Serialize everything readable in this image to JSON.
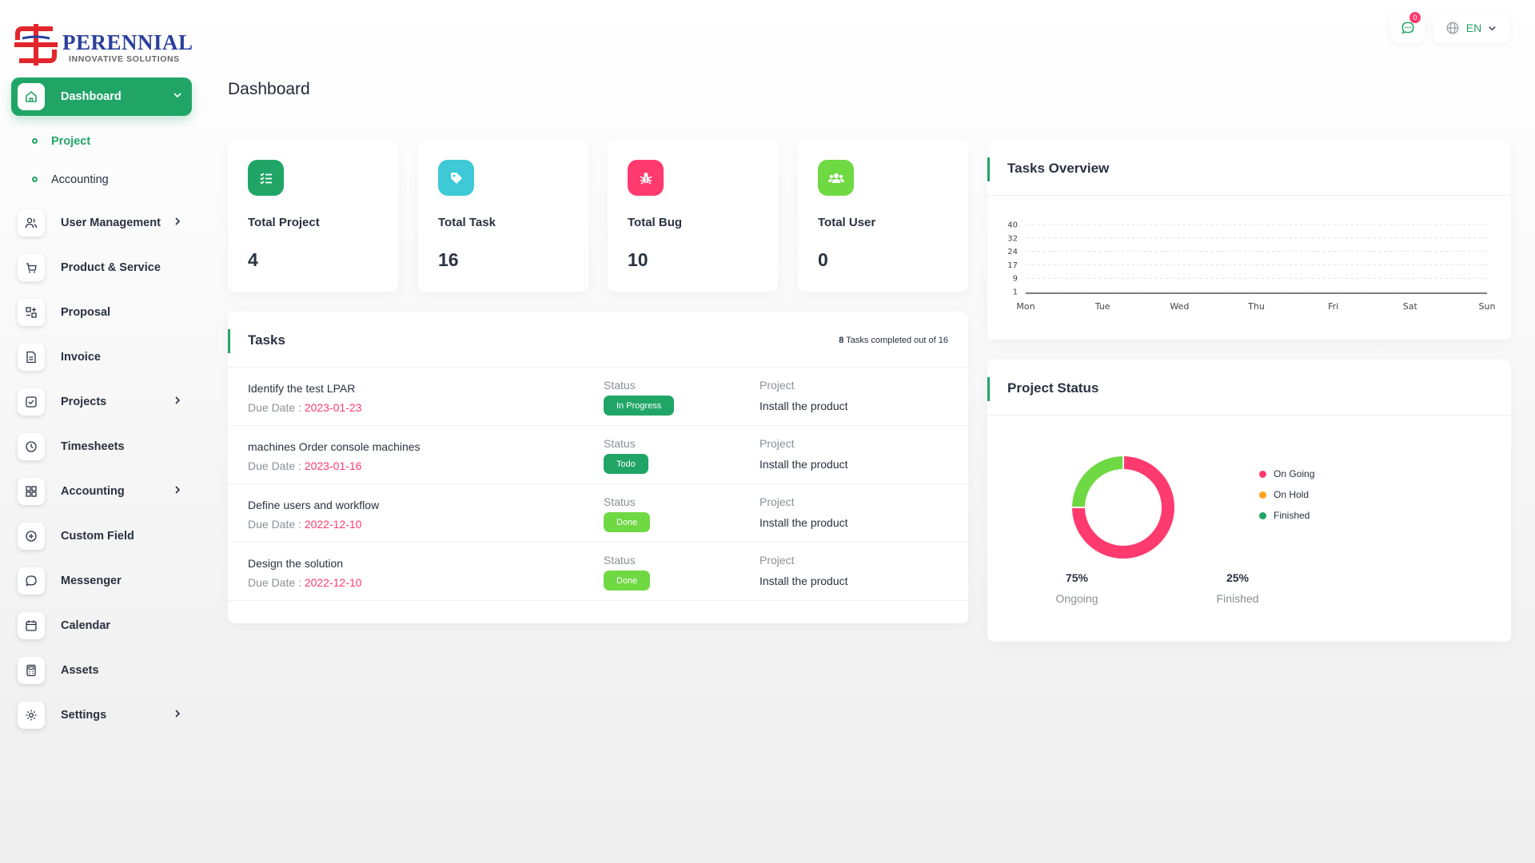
{
  "brand": {
    "name": "PERENNIAL",
    "tagline": "INNOVATIVE SOLUTIONS"
  },
  "colors": {
    "primary": "#21a567",
    "danger": "#ff3a6e",
    "info": "#3ec9d6",
    "light_green": "#6fd943",
    "warning": "#ffa21d"
  },
  "sidebar": {
    "dashboard": {
      "label": "Dashboard",
      "icon": "home-icon"
    },
    "dashboard_sub": [
      {
        "label": "Project"
      },
      {
        "label": "Accounting"
      }
    ],
    "items": [
      {
        "label": "User Management",
        "icon": "users-icon"
      },
      {
        "label": "Product & Service",
        "icon": "cart-icon"
      },
      {
        "label": "Proposal",
        "icon": "proposal-icon"
      },
      {
        "label": "Invoice",
        "icon": "invoice-icon"
      },
      {
        "label": "Projects",
        "icon": "checkbox-icon"
      },
      {
        "label": "Timesheets",
        "icon": "clock-icon"
      },
      {
        "label": "Accounting",
        "icon": "layout-grid-icon"
      },
      {
        "label": "Custom Field",
        "icon": "plus-circle-icon"
      },
      {
        "label": "Messenger",
        "icon": "chat-icon"
      },
      {
        "label": "Calendar",
        "icon": "calendar-icon"
      },
      {
        "label": "Assets",
        "icon": "calculator-icon"
      },
      {
        "label": "Settings",
        "icon": "gear-icon"
      }
    ]
  },
  "topbar": {
    "message_count": "0",
    "language": "EN"
  },
  "page": {
    "title": "Dashboard"
  },
  "stats": [
    {
      "label": "Total Project",
      "value": "4",
      "icon": "list-icon",
      "color": "#21a567"
    },
    {
      "label": "Total Task",
      "value": "16",
      "icon": "tag-icon",
      "color": "#3ec9d6"
    },
    {
      "label": "Total Bug",
      "value": "10",
      "icon": "bug-icon",
      "color": "#ff3a6e"
    },
    {
      "label": "Total User",
      "value": "0",
      "icon": "users-icon",
      "color": "#6fd943"
    }
  ],
  "tasks": {
    "title": "Tasks",
    "completed": "8",
    "completed_suffix": "Tasks completed out of 16",
    "status_label": "Status",
    "project_label": "Project",
    "due_label": "Due Date :",
    "rows": [
      {
        "name": "Identify the test LPAR",
        "due": "2023-01-23",
        "status": "In Progress",
        "status_color": "#21a567",
        "project": "Install the product"
      },
      {
        "name": "machines Order console machines",
        "due": "2023-01-16",
        "status": "Todo",
        "status_color": "#21a567",
        "project": "Install the product"
      },
      {
        "name": "Define users and workflow",
        "due": "2022-12-10",
        "status": "Done",
        "status_color": "#6fd943",
        "project": "Install the product"
      },
      {
        "name": "Design the solution",
        "due": "2022-12-10",
        "status": "Done",
        "status_color": "#6fd943",
        "project": "Install the product"
      }
    ]
  },
  "overview": {
    "title": "Tasks Overview"
  },
  "chart_data": [
    {
      "type": "line",
      "title": "Tasks Overview",
      "categories": [
        "Mon",
        "Tue",
        "Wed",
        "Thu",
        "Fri",
        "Sat",
        "Sun"
      ],
      "y_ticks": [
        "40",
        "32",
        "24",
        "17",
        "9",
        "1"
      ],
      "series": [
        {
          "values": [
            0,
            0,
            0,
            0,
            0,
            0,
            0
          ]
        }
      ],
      "grid": true
    },
    {
      "type": "pie",
      "title": "Project Status",
      "labels": [
        "On Going",
        "On Hold",
        "Finished"
      ],
      "values": [
        75,
        0,
        25
      ],
      "colors": [
        "#ff3a6e",
        "#ffa21d",
        "#6fd943"
      ],
      "legend": "right"
    }
  ],
  "project_status": {
    "title": "Project Status",
    "legend": [
      {
        "label": "On Going",
        "color": "#ff3a6e"
      },
      {
        "label": "On Hold",
        "color": "#ffa21d"
      },
      {
        "label": "Finished",
        "color": "#21a567"
      }
    ],
    "summary": [
      {
        "value": "75%",
        "label": "Ongoing"
      },
      {
        "value": "25%",
        "label": "Finished"
      }
    ]
  }
}
